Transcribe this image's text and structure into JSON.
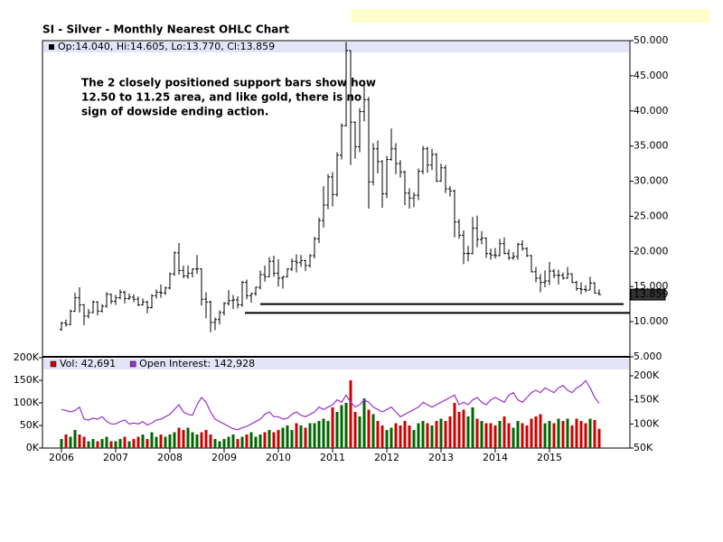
{
  "chart_data": [
    {
      "type": "ohlc",
      "title": "SI - Silver - Monthly Nearest OHLC Chart",
      "legend_text": "Op:14.040, Hi:14.605, Lo:13.770, Cl:13.859",
      "annotation": [
        "The 2 closely positioned support bars show how",
        "12.50 to 11.25 area, and like gold, there is no",
        "sign of dowside ending action."
      ],
      "color": "#000000",
      "support_levels": [
        12.5,
        11.25
      ],
      "categories": [
        "2006",
        null,
        null,
        null,
        null,
        null,
        null,
        null,
        null,
        null,
        null,
        null,
        "2007",
        null,
        null,
        null,
        null,
        null,
        null,
        null,
        null,
        null,
        null,
        null,
        "2008",
        null,
        null,
        null,
        null,
        null,
        null,
        null,
        null,
        null,
        null,
        null,
        "2009",
        null,
        null,
        null,
        null,
        null,
        null,
        null,
        null,
        null,
        null,
        null,
        "2010",
        null,
        null,
        null,
        null,
        null,
        null,
        null,
        null,
        null,
        null,
        null,
        "2011",
        null,
        null,
        null,
        null,
        null,
        null,
        null,
        null,
        null,
        null,
        null,
        "2012",
        null,
        null,
        null,
        null,
        null,
        null,
        null,
        null,
        null,
        null,
        null,
        "2013",
        null,
        null,
        null,
        null,
        null,
        null,
        null,
        null,
        null,
        null,
        null,
        "2014",
        null,
        null,
        null,
        null,
        null,
        null,
        null,
        null,
        null,
        null,
        null,
        "2015",
        null,
        null,
        null,
        null,
        null,
        null,
        null,
        null,
        null,
        null,
        null
      ],
      "open": [
        8.9,
        9.8,
        9.6,
        11.5,
        13.4,
        12.4,
        10.8,
        11.3,
        12.8,
        11.5,
        12.2,
        13.9,
        12.9,
        13.4,
        14.2,
        13.3,
        13.5,
        13.2,
        12.4,
        12.8,
        12.0,
        13.7,
        14.2,
        14.1,
        14.8,
        16.8,
        19.8,
        17.3,
        16.5,
        16.9,
        17.5,
        17.5,
        13.2,
        12.8,
        9.9,
        10.3,
        11.3,
        12.6,
        13.0,
        13.1,
        12.4,
        15.6,
        13.7,
        14.0,
        14.9,
        16.7,
        16.4,
        18.6,
        16.9,
        16.2,
        16.4,
        17.5,
        18.6,
        18.4,
        18.7,
        18.0,
        19.4,
        21.8,
        24.4,
        26.6,
        30.6,
        28.1,
        33.7,
        37.9,
        48.6,
        38.4,
        34.9,
        39.9,
        41.6,
        29.9,
        34.6,
        32.8,
        28.2,
        33.1,
        34.6,
        32.5,
        31.3,
        28.3,
        27.6,
        28.0,
        31.4,
        34.6,
        32.3,
        33.8,
        30.0,
        31.9,
        28.9,
        28.6,
        24.2,
        22.3,
        19.7,
        19.7,
        23.3,
        21.7,
        21.9,
        19.7,
        19.5,
        19.4,
        21.1,
        19.7,
        19.1,
        19.3,
        21.0,
        20.4,
        19.4,
        17.1,
        16.2,
        15.6,
        15.8,
        17.2,
        16.6,
        16.6,
        16.2,
        16.8,
        15.6,
        14.7,
        14.6,
        14.5,
        15.5,
        14.04
      ],
      "high": [
        10.0,
        10.3,
        11.7,
        14.1,
        14.9,
        12.5,
        11.8,
        13.0,
        12.9,
        12.5,
        14.2,
        14.0,
        13.8,
        14.6,
        14.4,
        14.0,
        13.9,
        13.6,
        13.3,
        13.0,
        13.9,
        14.6,
        15.3,
        15.0,
        17.0,
        20.0,
        21.2,
        18.0,
        18.0,
        17.6,
        19.5,
        17.6,
        14.2,
        13.0,
        10.6,
        11.6,
        12.8,
        14.5,
        13.8,
        13.6,
        15.8,
        16.0,
        14.1,
        15.0,
        17.3,
        18.0,
        19.2,
        19.4,
        18.9,
        16.5,
        17.6,
        19.0,
        19.6,
        19.5,
        18.8,
        19.6,
        22.1,
        24.8,
        29.3,
        31.0,
        31.3,
        34.1,
        38.2,
        49.8,
        48.6,
        38.5,
        40.4,
        44.3,
        42.0,
        35.4,
        35.8,
        33.0,
        33.6,
        37.5,
        35.4,
        33.0,
        31.5,
        29.0,
        28.4,
        31.8,
        35.0,
        34.9,
        34.6,
        34.0,
        32.5,
        32.3,
        29.3,
        28.8,
        24.6,
        23.0,
        20.8,
        24.9,
        25.1,
        22.9,
        22.0,
        20.4,
        20.5,
        21.8,
        22.0,
        20.3,
        19.9,
        21.2,
        21.6,
        20.6,
        19.5,
        17.8,
        16.8,
        17.3,
        18.5,
        17.5,
        17.4,
        17.0,
        17.8,
        16.9,
        15.8,
        15.6,
        15.2,
        16.4,
        15.6,
        14.605
      ],
      "low": [
        8.7,
        9.3,
        9.5,
        11.4,
        11.3,
        9.5,
        10.5,
        11.2,
        10.9,
        11.3,
        12.0,
        12.5,
        12.4,
        13.2,
        12.6,
        13.1,
        12.8,
        12.2,
        12.3,
        11.2,
        11.9,
        13.3,
        13.4,
        13.8,
        14.6,
        16.5,
        16.7,
        16.2,
        16.1,
        16.3,
        16.8,
        12.3,
        10.5,
        8.5,
        8.8,
        9.6,
        10.9,
        12.3,
        11.8,
        11.9,
        12.1,
        13.2,
        12.7,
        13.7,
        14.6,
        15.7,
        16.3,
        16.4,
        15.0,
        14.7,
        16.3,
        17.2,
        17.0,
        17.8,
        17.2,
        17.7,
        19.0,
        21.2,
        23.4,
        26.0,
        26.4,
        27.8,
        33.1,
        37.8,
        32.3,
        33.2,
        34.1,
        38.5,
        26.1,
        29.4,
        31.1,
        26.2,
        27.6,
        32.9,
        31.0,
        30.5,
        26.6,
        26.1,
        26.3,
        27.3,
        31.0,
        31.2,
        31.6,
        29.9,
        29.9,
        28.3,
        27.8,
        22.0,
        21.8,
        18.2,
        18.6,
        19.6,
        20.6,
        21.0,
        19.1,
        18.8,
        19.0,
        19.3,
        19.6,
        18.8,
        18.8,
        18.8,
        20.1,
        19.2,
        17.0,
        15.6,
        14.2,
        14.9,
        15.2,
        16.2,
        15.3,
        16.0,
        16.1,
        15.5,
        14.4,
        13.9,
        14.2,
        14.5,
        14.0,
        13.77
      ],
      "close": [
        9.8,
        9.6,
        11.5,
        13.4,
        12.4,
        10.8,
        11.3,
        12.8,
        11.5,
        12.2,
        13.9,
        12.9,
        13.4,
        14.2,
        13.3,
        13.5,
        13.2,
        12.4,
        12.8,
        12.0,
        13.7,
        14.2,
        14.1,
        14.8,
        16.8,
        19.8,
        17.3,
        16.5,
        16.9,
        17.5,
        17.5,
        13.2,
        12.8,
        9.9,
        10.3,
        11.3,
        12.6,
        13.0,
        13.1,
        12.4,
        15.6,
        13.7,
        14.0,
        14.9,
        16.7,
        16.4,
        18.6,
        16.9,
        16.2,
        16.4,
        17.5,
        18.6,
        18.4,
        18.7,
        18.0,
        19.4,
        21.8,
        24.4,
        26.6,
        30.6,
        28.1,
        33.7,
        37.9,
        48.6,
        38.4,
        34.9,
        39.9,
        41.6,
        29.9,
        34.6,
        32.8,
        28.2,
        33.1,
        34.6,
        32.5,
        31.3,
        28.3,
        27.6,
        28.0,
        31.4,
        34.6,
        32.3,
        33.8,
        30.0,
        31.9,
        28.9,
        28.6,
        24.2,
        22.3,
        19.7,
        19.7,
        23.3,
        21.7,
        21.9,
        19.7,
        19.5,
        19.4,
        21.1,
        19.7,
        19.1,
        19.3,
        21.0,
        20.4,
        19.4,
        17.1,
        16.2,
        15.6,
        15.8,
        17.2,
        16.6,
        16.6,
        16.2,
        16.8,
        15.6,
        14.7,
        14.6,
        14.5,
        15.5,
        14.04,
        13.859
      ],
      "ylim": [
        5,
        50
      ],
      "yticks": [
        {
          "value": 5,
          "label": "5.000"
        },
        {
          "value": 10,
          "label": "10.000"
        },
        {
          "value": 15,
          "label": "15.000"
        },
        {
          "value": 20,
          "label": "20.000"
        },
        {
          "value": 25,
          "label": "25.000"
        },
        {
          "value": 30,
          "label": "30.000"
        },
        {
          "value": 35,
          "label": "35.000"
        },
        {
          "value": 40,
          "label": "40.000"
        },
        {
          "value": 45,
          "label": "45.000"
        },
        {
          "value": 50,
          "label": "50.000"
        }
      ]
    },
    {
      "type": "bar",
      "up_color": "#006600",
      "series": [
        {
          "name": "Vol: 42,691",
          "color": "#cc0000",
          "values": [
            20000,
            30000,
            25000,
            40000,
            30000,
            25000,
            15000,
            20000,
            15000,
            20000,
            25000,
            15000,
            15000,
            20000,
            25000,
            15000,
            20000,
            25000,
            30000,
            20000,
            35000,
            25000,
            30000,
            25000,
            30000,
            35000,
            45000,
            40000,
            45000,
            35000,
            30000,
            35000,
            40000,
            30000,
            20000,
            15000,
            20000,
            25000,
            30000,
            20000,
            25000,
            30000,
            35000,
            25000,
            30000,
            35000,
            40000,
            35000,
            40000,
            45000,
            50000,
            40000,
            55000,
            50000,
            45000,
            55000,
            55000,
            60000,
            65000,
            60000,
            90000,
            80000,
            95000,
            100000,
            150000,
            80000,
            70000,
            110000,
            85000,
            75000,
            60000,
            50000,
            40000,
            45000,
            55000,
            50000,
            60000,
            50000,
            40000,
            55000,
            60000,
            55000,
            50000,
            60000,
            65000,
            60000,
            70000,
            100000,
            80000,
            85000,
            70000,
            90000,
            65000,
            60000,
            55000,
            55000,
            50000,
            60000,
            70000,
            55000,
            45000,
            60000,
            55000,
            50000,
            65000,
            70000,
            75000,
            55000,
            60000,
            55000,
            65000,
            60000,
            65000,
            50000,
            65000,
            60000,
            55000,
            65000,
            62000,
            42691
          ]
        },
        {
          "name": "Open Interest: 142,928",
          "color": "#9933cc",
          "axis": "y2",
          "values": [
            130000,
            128000,
            125000,
            128000,
            135000,
            110000,
            108000,
            112000,
            110000,
            115000,
            105000,
            100000,
            100000,
            105000,
            108000,
            100000,
            102000,
            100000,
            105000,
            98000,
            102000,
            108000,
            110000,
            115000,
            120000,
            130000,
            140000,
            125000,
            120000,
            118000,
            140000,
            155000,
            145000,
            125000,
            110000,
            105000,
            100000,
            95000,
            90000,
            88000,
            92000,
            95000,
            100000,
            105000,
            110000,
            120000,
            125000,
            115000,
            115000,
            110000,
            112000,
            120000,
            125000,
            118000,
            115000,
            120000,
            125000,
            135000,
            130000,
            135000,
            140000,
            150000,
            145000,
            160000,
            145000,
            135000,
            140000,
            150000,
            145000,
            135000,
            130000,
            125000,
            130000,
            135000,
            125000,
            115000,
            120000,
            125000,
            130000,
            135000,
            145000,
            140000,
            135000,
            140000,
            145000,
            150000,
            155000,
            160000,
            140000,
            145000,
            140000,
            150000,
            155000,
            145000,
            140000,
            150000,
            155000,
            150000,
            145000,
            160000,
            165000,
            150000,
            145000,
            155000,
            165000,
            170000,
            165000,
            175000,
            170000,
            165000,
            175000,
            180000,
            170000,
            165000,
            175000,
            180000,
            190000,
            175000,
            155000,
            142928
          ]
        }
      ],
      "ylim": [
        0,
        200000
      ],
      "yticks": [
        {
          "value": 0,
          "label": "0K"
        },
        {
          "value": 50000,
          "label": "50K"
        },
        {
          "value": 100000,
          "label": "100K"
        },
        {
          "value": 150000,
          "label": "150K"
        },
        {
          "value": 200000,
          "label": "200K"
        }
      ],
      "y2lim": [
        50000,
        237500
      ],
      "y2ticks": [
        {
          "value": 50000,
          "label": "50K"
        },
        {
          "value": 100000,
          "label": "100K"
        },
        {
          "value": 150000,
          "label": "150K"
        },
        {
          "value": 200000,
          "label": "200K"
        }
      ]
    }
  ]
}
